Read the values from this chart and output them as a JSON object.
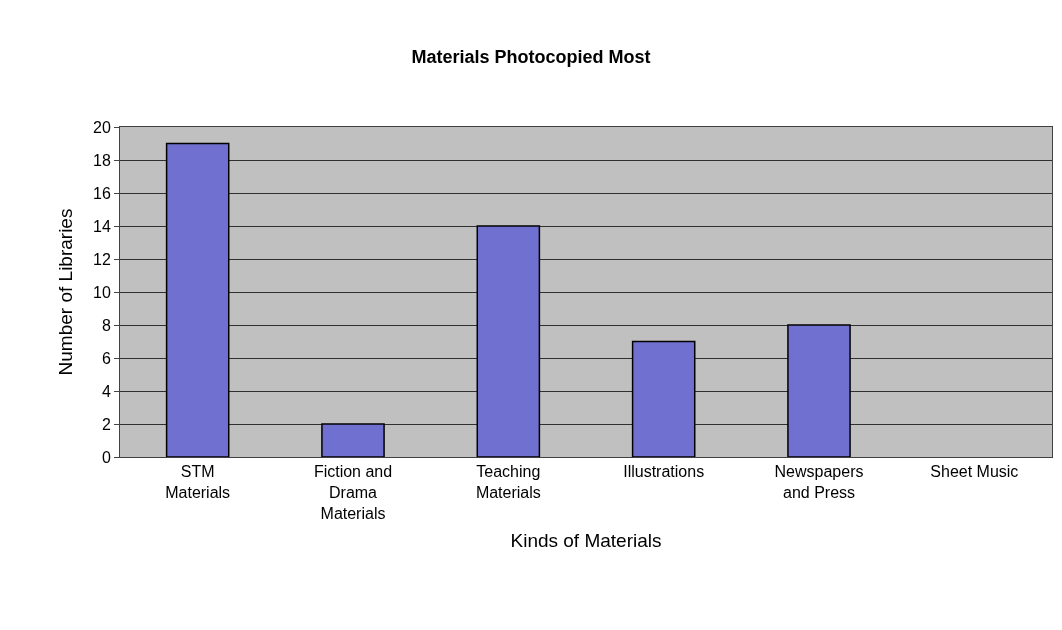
{
  "chart_data": {
    "type": "bar",
    "title": "Materials Photocopied Most",
    "xlabel": "Kinds of Materials",
    "ylabel": "Number of Libraries",
    "categories": [
      "STM Materials",
      "Fiction and Drama Materials",
      "Teaching Materials",
      "Illustrations",
      "Newspapers and Press",
      "Sheet Music"
    ],
    "values": [
      19,
      2,
      14,
      7,
      8,
      0
    ],
    "color": "#7070d0",
    "ylim": [
      0,
      20
    ],
    "yticks": [
      0,
      2,
      4,
      6,
      8,
      10,
      12,
      14,
      16,
      18,
      20
    ],
    "grid": "y"
  }
}
